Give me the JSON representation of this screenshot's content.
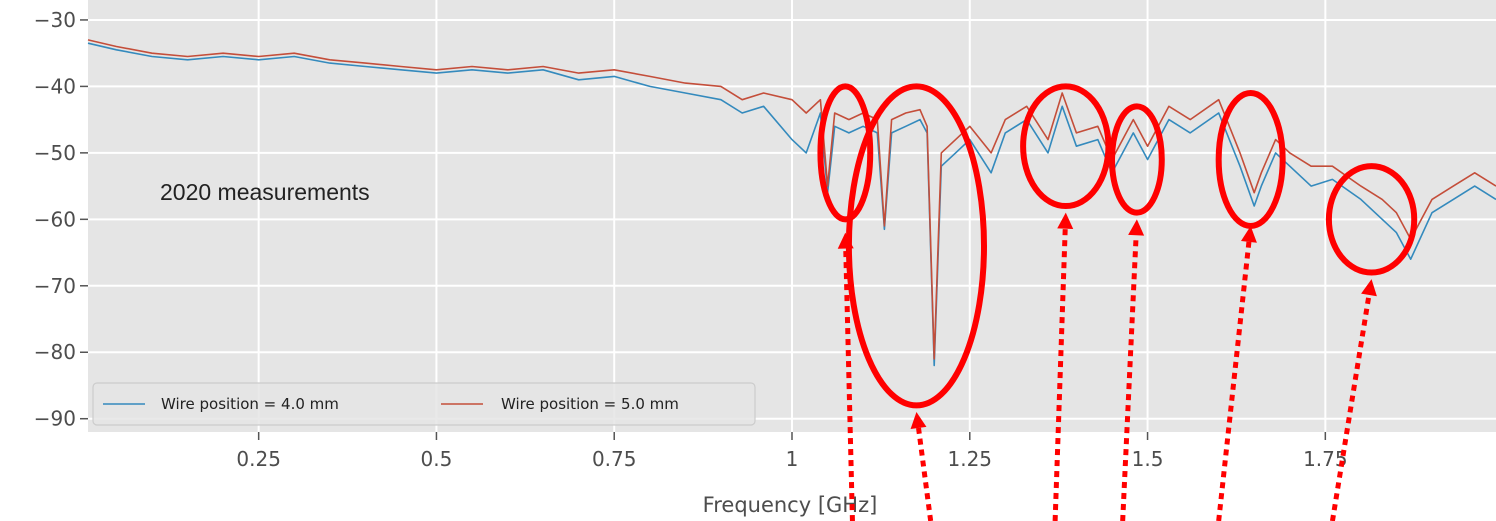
{
  "chart_data": {
    "type": "line",
    "xlabel": "Frequency [GHz]",
    "xlim": [
      0.01,
      1.99
    ],
    "ylim": [
      -92,
      -27
    ],
    "x_ticks": [
      0.25,
      0.5,
      0.75,
      1,
      1.25,
      1.5,
      1.75
    ],
    "x_tick_labels": [
      "0.25",
      "0.5",
      "0.75",
      "1",
      "1.25",
      "1.5",
      "1.75"
    ],
    "y_ticks": [
      -30,
      -40,
      -50,
      -60,
      -70,
      -80,
      -90
    ],
    "y_tick_labels": [
      "−30",
      "−40",
      "−50",
      "−60",
      "−70",
      "−80",
      "−90"
    ],
    "grid": true,
    "legend_placement": "lower-left",
    "annotation": "2020 measurements",
    "colors": {
      "background": "#e5e5e5",
      "grid": "#ffffff",
      "highlight": "#ff0000"
    },
    "series": [
      {
        "name": "Wire position = 4.0 mm",
        "color": "#348abd",
        "x": [
          0.01,
          0.05,
          0.1,
          0.15,
          0.2,
          0.25,
          0.3,
          0.35,
          0.4,
          0.45,
          0.5,
          0.55,
          0.6,
          0.65,
          0.7,
          0.75,
          0.8,
          0.85,
          0.9,
          0.93,
          0.96,
          1.0,
          1.02,
          1.04,
          1.05,
          1.06,
          1.08,
          1.1,
          1.12,
          1.13,
          1.14,
          1.16,
          1.18,
          1.19,
          1.2,
          1.21,
          1.23,
          1.25,
          1.28,
          1.3,
          1.33,
          1.36,
          1.38,
          1.4,
          1.43,
          1.45,
          1.48,
          1.5,
          1.53,
          1.56,
          1.6,
          1.63,
          1.65,
          1.66,
          1.68,
          1.7,
          1.73,
          1.76,
          1.8,
          1.83,
          1.85,
          1.87,
          1.9,
          1.93,
          1.96,
          1.99
        ],
        "values": [
          -33.5,
          -34.5,
          -35.5,
          -36,
          -35.5,
          -36,
          -35.5,
          -36.5,
          -37,
          -37.5,
          -38,
          -37.5,
          -38,
          -37.5,
          -39,
          -38.5,
          -40,
          -41,
          -42,
          -44,
          -43,
          -48,
          -50,
          -44,
          -56,
          -46,
          -47,
          -46,
          -47,
          -61.5,
          -47,
          -46,
          -45,
          -47,
          -82,
          -52,
          -50,
          -48,
          -53,
          -47,
          -45,
          -50,
          -43,
          -49,
          -48,
          -53,
          -47,
          -51,
          -45,
          -47,
          -44,
          -52,
          -58,
          -55,
          -50,
          -52,
          -55,
          -54,
          -57,
          -60,
          -62,
          -66,
          -59,
          -57,
          -55,
          -57
        ]
      },
      {
        "name": "Wire position = 5.0 mm",
        "color": "#c44e3a",
        "x": [
          0.01,
          0.05,
          0.1,
          0.15,
          0.2,
          0.25,
          0.3,
          0.35,
          0.4,
          0.45,
          0.5,
          0.55,
          0.6,
          0.65,
          0.7,
          0.75,
          0.8,
          0.85,
          0.9,
          0.93,
          0.96,
          1.0,
          1.02,
          1.04,
          1.05,
          1.06,
          1.08,
          1.1,
          1.12,
          1.13,
          1.14,
          1.16,
          1.18,
          1.19,
          1.2,
          1.21,
          1.23,
          1.25,
          1.28,
          1.3,
          1.33,
          1.36,
          1.38,
          1.4,
          1.43,
          1.45,
          1.48,
          1.5,
          1.53,
          1.56,
          1.6,
          1.63,
          1.65,
          1.66,
          1.68,
          1.7,
          1.73,
          1.76,
          1.8,
          1.83,
          1.85,
          1.87,
          1.9,
          1.93,
          1.96,
          1.99
        ],
        "values": [
          -33,
          -34,
          -35,
          -35.5,
          -35,
          -35.5,
          -35,
          -36,
          -36.5,
          -37,
          -37.5,
          -37,
          -37.5,
          -37,
          -38,
          -37.5,
          -38.5,
          -39.5,
          -40,
          -42,
          -41,
          -42,
          -44,
          -42,
          -55,
          -44,
          -45,
          -44,
          -45,
          -61,
          -45,
          -44,
          -43.5,
          -46,
          -81,
          -50,
          -48,
          -46,
          -50,
          -45,
          -43,
          -48,
          -41,
          -47,
          -46,
          -51,
          -45,
          -49,
          -43,
          -45,
          -42,
          -50,
          -56,
          -53,
          -48,
          -50,
          -52,
          -52,
          -55,
          -57,
          -59,
          -63,
          -57,
          -55,
          -53,
          -55
        ]
      }
    ],
    "highlight_ellipses": [
      {
        "cx": 1.075,
        "cy": -50,
        "rx": 0.035,
        "ry": 10
      },
      {
        "cx": 1.175,
        "cy": -64,
        "rx": 0.095,
        "ry": 24
      },
      {
        "cx": 1.385,
        "cy": -49,
        "rx": 0.06,
        "ry": 9
      },
      {
        "cx": 1.485,
        "cy": -51,
        "rx": 0.035,
        "ry": 8
      },
      {
        "cx": 1.645,
        "cy": -51,
        "rx": 0.045,
        "ry": 10
      },
      {
        "cx": 1.815,
        "cy": -60,
        "rx": 0.06,
        "ry": 8
      }
    ],
    "highlight_arrows": [
      {
        "x_from": 1.085,
        "x_to": 1.075,
        "y_to": -62
      },
      {
        "x_from": 1.195,
        "x_to": 1.175,
        "y_to": -89
      },
      {
        "x_from": 1.37,
        "x_to": 1.385,
        "y_to": -59
      },
      {
        "x_from": 1.465,
        "x_to": 1.485,
        "y_to": -60
      },
      {
        "x_from": 1.6,
        "x_to": 1.645,
        "y_to": -61
      },
      {
        "x_from": 1.76,
        "x_to": 1.815,
        "y_to": -69
      }
    ]
  }
}
